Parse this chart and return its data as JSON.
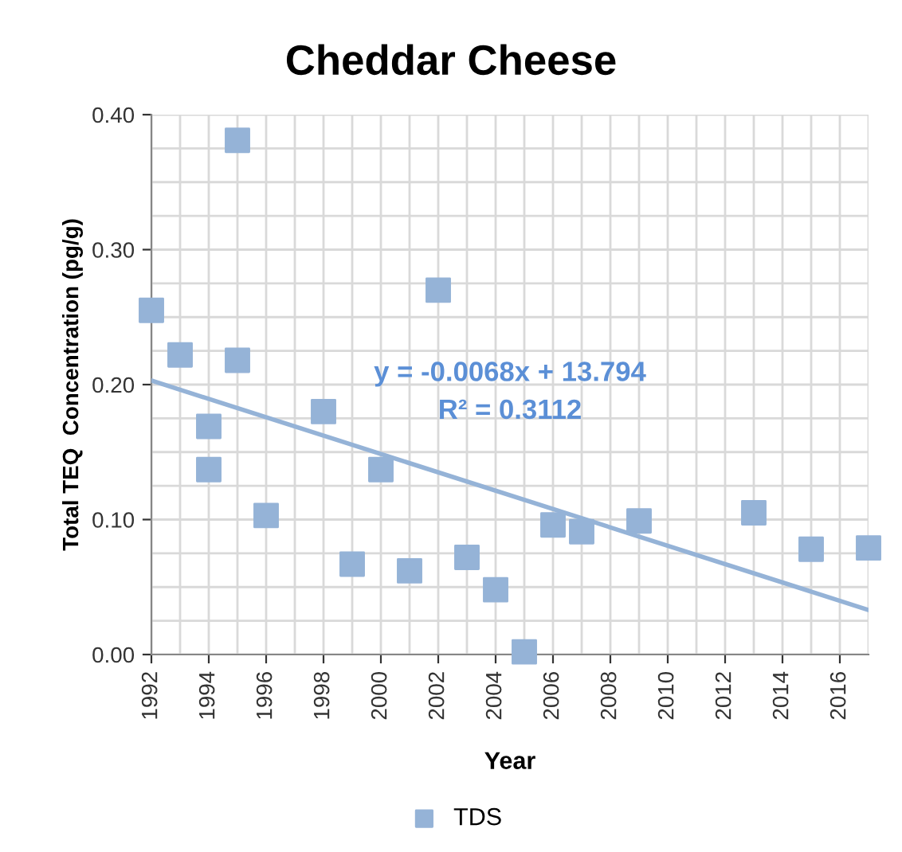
{
  "chart_data": {
    "type": "scatter",
    "title": "Cheddar Cheese",
    "xlabel": "Year",
    "ylabel": "Total TEQ  Concentration (pg/g)",
    "series": [
      {
        "name": "TDS",
        "color": "#95b3d7",
        "marker": "square",
        "x": [
          1992,
          1993,
          1994,
          1994,
          1995,
          1995,
          1996,
          1998,
          1999,
          2000,
          2001,
          2002,
          2003,
          2004,
          2005,
          2006,
          2007,
          2009,
          2013,
          2015,
          2017
        ],
        "values": [
          0.255,
          0.222,
          0.169,
          0.137,
          0.381,
          0.218,
          0.103,
          0.18,
          0.067,
          0.137,
          0.062,
          0.27,
          0.072,
          0.048,
          0.002,
          0.096,
          0.091,
          0.099,
          0.105,
          0.078,
          0.079
        ]
      },
      {
        "type": "line",
        "color": "#95b3d7",
        "x": [
          1992,
          2017
        ],
        "values": [
          0.203,
          0.033
        ]
      }
    ],
    "annotations": [
      "y = -0.0068x + 13.794",
      "R² = 0.3112"
    ],
    "xlim": [
      1992,
      2017
    ],
    "xticks": [
      1992,
      1994,
      1996,
      1998,
      2000,
      2002,
      2004,
      2006,
      2008,
      2010,
      2012,
      2014,
      2016
    ],
    "ylim": [
      0,
      0.4
    ],
    "yticks": [
      {
        "value": 0,
        "label": "0.00"
      },
      {
        "value": 0.1,
        "label": "0.10"
      },
      {
        "value": 0.2,
        "label": "0.20"
      },
      {
        "value": 0.3,
        "label": "0.30"
      },
      {
        "value": 0.4,
        "label": "0.40"
      }
    ],
    "grid": true,
    "legend": "bottom"
  }
}
